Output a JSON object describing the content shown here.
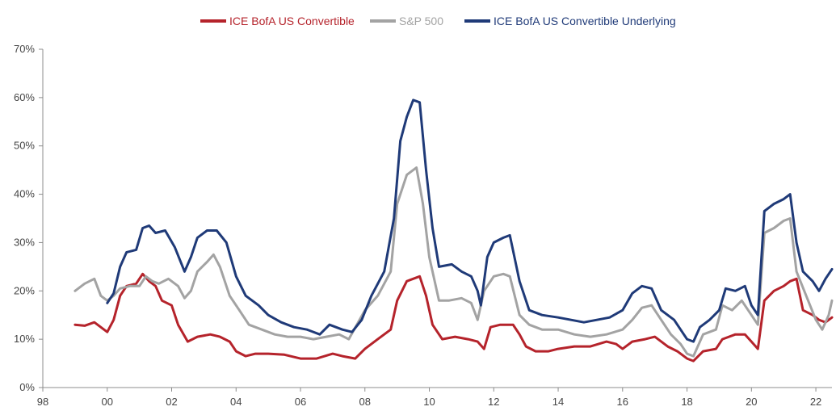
{
  "chart_data": {
    "type": "line",
    "title": "",
    "xlabel": "",
    "ylabel": "",
    "x_ticks": [
      "98",
      "00",
      "02",
      "04",
      "06",
      "08",
      "10",
      "12",
      "14",
      "16",
      "18",
      "20",
      "22"
    ],
    "y_ticks": [
      "0%",
      "10%",
      "20%",
      "30%",
      "40%",
      "50%",
      "60%",
      "70%"
    ],
    "xlim": [
      1998,
      2022.5
    ],
    "ylim": [
      0,
      70
    ],
    "grid": false,
    "legend_position": "top",
    "series": [
      {
        "name": "ICE BofA US Convertible",
        "color": "#b5232b",
        "points": [
          [
            1999.0,
            13
          ],
          [
            1999.3,
            12.8
          ],
          [
            1999.6,
            13.5
          ],
          [
            1999.8,
            12.5
          ],
          [
            2000.0,
            11.5
          ],
          [
            2000.2,
            14
          ],
          [
            2000.4,
            19
          ],
          [
            2000.6,
            21
          ],
          [
            2000.9,
            21.5
          ],
          [
            2001.1,
            23.5
          ],
          [
            2001.3,
            22
          ],
          [
            2001.5,
            21
          ],
          [
            2001.7,
            18
          ],
          [
            2002.0,
            17
          ],
          [
            2002.2,
            13
          ],
          [
            2002.5,
            9.5
          ],
          [
            2002.8,
            10.5
          ],
          [
            2003.2,
            11
          ],
          [
            2003.5,
            10.5
          ],
          [
            2003.8,
            9.5
          ],
          [
            2004.0,
            7.5
          ],
          [
            2004.3,
            6.5
          ],
          [
            2004.6,
            7
          ],
          [
            2005.0,
            7
          ],
          [
            2005.5,
            6.8
          ],
          [
            2006.0,
            6
          ],
          [
            2006.5,
            6
          ],
          [
            2007.0,
            7
          ],
          [
            2007.3,
            6.5
          ],
          [
            2007.7,
            6
          ],
          [
            2008.0,
            8
          ],
          [
            2008.4,
            10
          ],
          [
            2008.8,
            12
          ],
          [
            2009.0,
            18
          ],
          [
            2009.3,
            22
          ],
          [
            2009.7,
            23
          ],
          [
            2009.9,
            19
          ],
          [
            2010.1,
            13
          ],
          [
            2010.4,
            10
          ],
          [
            2010.8,
            10.5
          ],
          [
            2011.2,
            10
          ],
          [
            2011.5,
            9.5
          ],
          [
            2011.7,
            8
          ],
          [
            2011.9,
            12.5
          ],
          [
            2012.2,
            13
          ],
          [
            2012.6,
            13
          ],
          [
            2012.8,
            11
          ],
          [
            2013.0,
            8.5
          ],
          [
            2013.3,
            7.5
          ],
          [
            2013.7,
            7.5
          ],
          [
            2014.0,
            8
          ],
          [
            2014.5,
            8.5
          ],
          [
            2015.0,
            8.5
          ],
          [
            2015.5,
            9.5
          ],
          [
            2015.8,
            9
          ],
          [
            2016.0,
            8
          ],
          [
            2016.3,
            9.5
          ],
          [
            2016.7,
            10
          ],
          [
            2017.0,
            10.5
          ],
          [
            2017.4,
            8.5
          ],
          [
            2017.7,
            7.5
          ],
          [
            2018.0,
            6
          ],
          [
            2018.2,
            5.5
          ],
          [
            2018.5,
            7.5
          ],
          [
            2018.9,
            8
          ],
          [
            2019.1,
            10
          ],
          [
            2019.5,
            11
          ],
          [
            2019.8,
            11
          ],
          [
            2020.0,
            9.5
          ],
          [
            2020.2,
            8
          ],
          [
            2020.4,
            18
          ],
          [
            2020.7,
            20
          ],
          [
            2021.0,
            21
          ],
          [
            2021.2,
            22
          ],
          [
            2021.4,
            22.5
          ],
          [
            2021.6,
            16
          ],
          [
            2021.9,
            15
          ],
          [
            2022.1,
            14
          ],
          [
            2022.3,
            13.5
          ],
          [
            2022.5,
            14.5
          ]
        ]
      },
      {
        "name": "S&P 500",
        "color": "#a3a3a3",
        "points": [
          [
            1999.0,
            20
          ],
          [
            1999.3,
            21.5
          ],
          [
            1999.6,
            22.5
          ],
          [
            1999.8,
            19
          ],
          [
            2000.0,
            18
          ],
          [
            2000.2,
            19
          ],
          [
            2000.4,
            20.5
          ],
          [
            2000.7,
            21
          ],
          [
            2001.0,
            21
          ],
          [
            2001.2,
            23
          ],
          [
            2001.4,
            22
          ],
          [
            2001.6,
            21.5
          ],
          [
            2001.9,
            22.5
          ],
          [
            2002.2,
            21
          ],
          [
            2002.4,
            18.5
          ],
          [
            2002.6,
            20
          ],
          [
            2002.8,
            24
          ],
          [
            2003.1,
            26
          ],
          [
            2003.3,
            27.5
          ],
          [
            2003.5,
            25
          ],
          [
            2003.8,
            19
          ],
          [
            2004.1,
            16
          ],
          [
            2004.4,
            13
          ],
          [
            2004.8,
            12
          ],
          [
            2005.2,
            11
          ],
          [
            2005.6,
            10.5
          ],
          [
            2006.0,
            10.5
          ],
          [
            2006.4,
            10
          ],
          [
            2006.8,
            10.5
          ],
          [
            2007.2,
            11
          ],
          [
            2007.5,
            10
          ],
          [
            2008.0,
            16
          ],
          [
            2008.4,
            19
          ],
          [
            2008.8,
            24
          ],
          [
            2009.0,
            38
          ],
          [
            2009.3,
            44
          ],
          [
            2009.6,
            45.5
          ],
          [
            2009.8,
            38
          ],
          [
            2010.0,
            27
          ],
          [
            2010.3,
            18
          ],
          [
            2010.6,
            18
          ],
          [
            2011.0,
            18.5
          ],
          [
            2011.3,
            17.5
          ],
          [
            2011.5,
            14
          ],
          [
            2011.7,
            20
          ],
          [
            2012.0,
            23
          ],
          [
            2012.3,
            23.5
          ],
          [
            2012.5,
            23
          ],
          [
            2012.8,
            15
          ],
          [
            2013.1,
            13
          ],
          [
            2013.5,
            12
          ],
          [
            2014.0,
            12
          ],
          [
            2014.5,
            11
          ],
          [
            2015.0,
            10.5
          ],
          [
            2015.5,
            11
          ],
          [
            2016.0,
            12
          ],
          [
            2016.3,
            14
          ],
          [
            2016.6,
            16.5
          ],
          [
            2016.9,
            17
          ],
          [
            2017.2,
            14
          ],
          [
            2017.5,
            11
          ],
          [
            2017.8,
            9
          ],
          [
            2018.0,
            7
          ],
          [
            2018.2,
            6.5
          ],
          [
            2018.5,
            11
          ],
          [
            2018.9,
            12
          ],
          [
            2019.1,
            17
          ],
          [
            2019.4,
            16
          ],
          [
            2019.7,
            18
          ],
          [
            2020.0,
            15
          ],
          [
            2020.2,
            13
          ],
          [
            2020.4,
            32
          ],
          [
            2020.7,
            33
          ],
          [
            2021.0,
            34.5
          ],
          [
            2021.2,
            35
          ],
          [
            2021.4,
            24
          ],
          [
            2021.7,
            19
          ],
          [
            2022.0,
            14
          ],
          [
            2022.2,
            12
          ],
          [
            2022.4,
            15
          ],
          [
            2022.5,
            18
          ]
        ]
      },
      {
        "name": "ICE BofA US Convertible Underlying",
        "color": "#1f3a78",
        "points": [
          [
            2000.0,
            17.5
          ],
          [
            2000.2,
            19.5
          ],
          [
            2000.4,
            25
          ],
          [
            2000.6,
            28
          ],
          [
            2000.9,
            28.5
          ],
          [
            2001.1,
            33
          ],
          [
            2001.3,
            33.5
          ],
          [
            2001.5,
            32
          ],
          [
            2001.8,
            32.5
          ],
          [
            2002.1,
            29
          ],
          [
            2002.4,
            24
          ],
          [
            2002.6,
            27
          ],
          [
            2002.8,
            31
          ],
          [
            2003.1,
            32.5
          ],
          [
            2003.4,
            32.5
          ],
          [
            2003.7,
            30
          ],
          [
            2004.0,
            23
          ],
          [
            2004.3,
            19
          ],
          [
            2004.7,
            17
          ],
          [
            2005.0,
            15
          ],
          [
            2005.4,
            13.5
          ],
          [
            2005.8,
            12.5
          ],
          [
            2006.2,
            12
          ],
          [
            2006.6,
            11
          ],
          [
            2006.9,
            13
          ],
          [
            2007.3,
            12
          ],
          [
            2007.6,
            11.5
          ],
          [
            2007.9,
            14
          ],
          [
            2008.2,
            19
          ],
          [
            2008.6,
            24
          ],
          [
            2008.9,
            35
          ],
          [
            2009.1,
            51
          ],
          [
            2009.3,
            56
          ],
          [
            2009.5,
            59.5
          ],
          [
            2009.7,
            59
          ],
          [
            2009.9,
            45
          ],
          [
            2010.1,
            33
          ],
          [
            2010.3,
            25
          ],
          [
            2010.7,
            25.5
          ],
          [
            2011.0,
            24
          ],
          [
            2011.3,
            23
          ],
          [
            2011.5,
            20
          ],
          [
            2011.6,
            17
          ],
          [
            2011.8,
            27
          ],
          [
            2012.0,
            30
          ],
          [
            2012.3,
            31
          ],
          [
            2012.5,
            31.5
          ],
          [
            2012.8,
            22
          ],
          [
            2013.1,
            16
          ],
          [
            2013.5,
            15
          ],
          [
            2014.0,
            14.5
          ],
          [
            2014.4,
            14
          ],
          [
            2014.8,
            13.5
          ],
          [
            2015.2,
            14
          ],
          [
            2015.6,
            14.5
          ],
          [
            2016.0,
            16
          ],
          [
            2016.3,
            19.5
          ],
          [
            2016.6,
            21
          ],
          [
            2016.9,
            20.5
          ],
          [
            2017.2,
            16
          ],
          [
            2017.6,
            14
          ],
          [
            2017.9,
            11
          ],
          [
            2018.0,
            10
          ],
          [
            2018.2,
            9.5
          ],
          [
            2018.4,
            12.5
          ],
          [
            2018.7,
            14
          ],
          [
            2019.0,
            16
          ],
          [
            2019.2,
            20.5
          ],
          [
            2019.5,
            20
          ],
          [
            2019.8,
            21
          ],
          [
            2020.0,
            17
          ],
          [
            2020.2,
            15
          ],
          [
            2020.4,
            36.5
          ],
          [
            2020.7,
            38
          ],
          [
            2021.0,
            39
          ],
          [
            2021.2,
            40
          ],
          [
            2021.4,
            30
          ],
          [
            2021.6,
            24
          ],
          [
            2021.9,
            22
          ],
          [
            2022.1,
            20
          ],
          [
            2022.3,
            22.5
          ],
          [
            2022.5,
            24.5
          ]
        ]
      }
    ]
  }
}
